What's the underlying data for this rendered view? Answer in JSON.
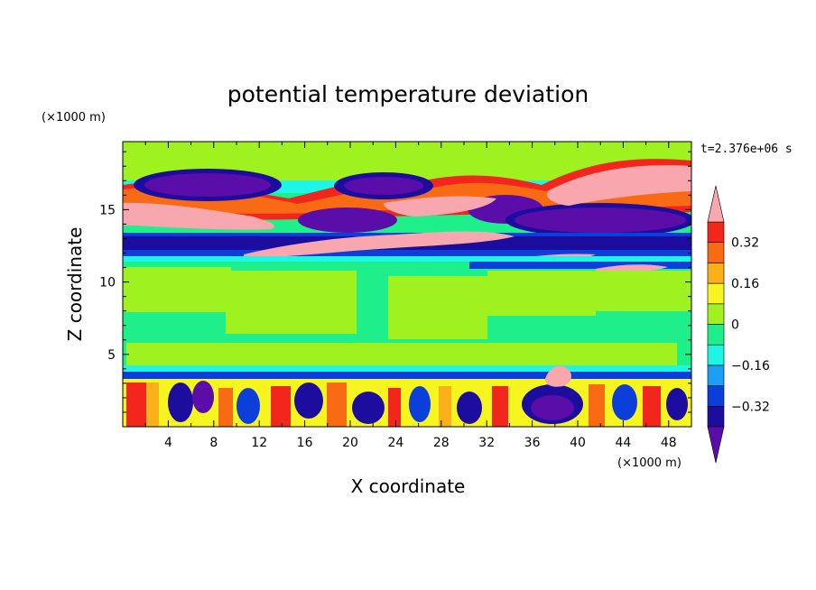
{
  "chart_data": {
    "type": "heatmap",
    "title": "potential temperature deviation",
    "xlabel": "X coordinate",
    "ylabel": "Z coordinate",
    "x_unit": "(×1000 m)",
    "y_unit": "(×1000 m)",
    "time_label": "t=2.376e+06 s",
    "xlim": [
      0,
      50
    ],
    "ylim": [
      0,
      19.7
    ],
    "x_ticks": [
      "4",
      "8",
      "12",
      "16",
      "20",
      "24",
      "28",
      "32",
      "36",
      "40",
      "44",
      "48"
    ],
    "y_ticks": [
      "5",
      "10",
      "15"
    ],
    "x_tick_values": [
      4,
      8,
      12,
      16,
      20,
      24,
      28,
      32,
      36,
      40,
      44,
      48
    ],
    "y_tick_values": [
      5,
      10,
      15
    ],
    "colorbar": {
      "labels": [
        "0.32",
        "0.16",
        "0",
        "−0.16",
        "−0.32"
      ],
      "label_values": [
        0.32,
        0.16,
        0,
        -0.16,
        -0.32
      ],
      "levels": [
        -0.4,
        -0.32,
        -0.24,
        -0.16,
        -0.08,
        0,
        0.08,
        0.16,
        0.24,
        0.32,
        0.4
      ],
      "colors": [
        "#5a0da8",
        "#1d0d9e",
        "#0c3fd9",
        "#1ca0f5",
        "#1ff5e4",
        "#1fef8a",
        "#9ff21f",
        "#f7f51f",
        "#fbb01a",
        "#f96a14",
        "#f2261c",
        "#f7a7ad"
      ]
    }
  }
}
